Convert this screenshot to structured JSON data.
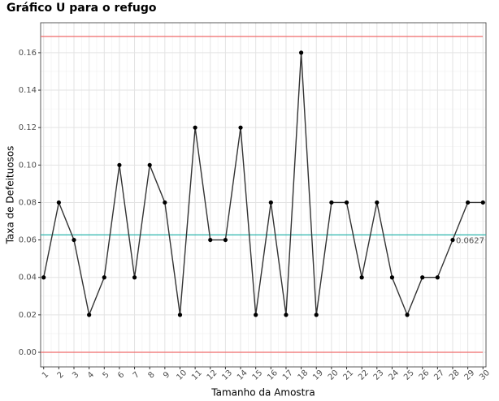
{
  "chart_data": {
    "type": "line",
    "title": "Gráfico U para o refugo",
    "x_label": "Tamanho da Amostra",
    "y_label": "Taxa de Defeituosos",
    "x": [
      1,
      2,
      3,
      4,
      5,
      6,
      7,
      8,
      9,
      10,
      11,
      12,
      13,
      14,
      15,
      16,
      17,
      18,
      19,
      20,
      21,
      22,
      23,
      24,
      25,
      26,
      27,
      28,
      29,
      30
    ],
    "values": [
      0.04,
      0.08,
      0.06,
      0.02,
      0.04,
      0.1,
      0.04,
      0.1,
      0.08,
      0.02,
      0.12,
      0.06,
      0.06,
      0.12,
      0.02,
      0.08,
      0.02,
      0.16,
      0.02,
      0.08,
      0.08,
      0.04,
      0.08,
      0.04,
      0.02,
      0.04,
      0.04,
      0.06,
      0.08,
      0.08
    ],
    "color": "#333333",
    "point_color": "#000000",
    "center_line": {
      "value": 0.0627,
      "label": "0.0627",
      "color": "#2bb5ad"
    },
    "control_limits": {
      "upper": 0.1687,
      "lower": 0,
      "color": "#ef6b6b"
    },
    "xlim": [
      0.8,
      30.2
    ],
    "xticks": [
      1,
      2,
      3,
      4,
      5,
      6,
      7,
      8,
      9,
      10,
      11,
      12,
      13,
      14,
      15,
      16,
      17,
      18,
      19,
      20,
      21,
      22,
      23,
      24,
      25,
      26,
      27,
      28,
      29,
      30
    ],
    "ylim": [
      -0.0078,
      0.176
    ],
    "yticks": [
      {
        "value": 0,
        "label": "0.00"
      },
      {
        "value": 0.02,
        "label": "0.02"
      },
      {
        "value": 0.04,
        "label": "0.04"
      },
      {
        "value": 0.06,
        "label": "0.06"
      },
      {
        "value": 0.08,
        "label": "0.08"
      },
      {
        "value": 0.1,
        "label": "0.10"
      },
      {
        "value": 0.12,
        "label": "0.12"
      },
      {
        "value": 0.14,
        "label": "0.14"
      },
      {
        "value": 0.16,
        "label": "0.16"
      }
    ],
    "grid": true
  }
}
